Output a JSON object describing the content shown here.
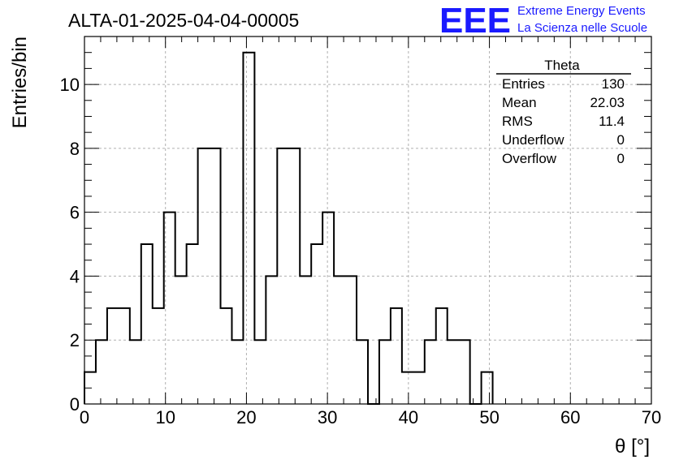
{
  "header": {
    "title": "ALTA-01-2025-04-04-00005",
    "logo_text": "EEE",
    "logo_line1": "Extreme Energy Events",
    "logo_line2": "La Scienza nelle Scuole",
    "logo_color": "#1a1aff"
  },
  "stats": {
    "name": "Theta",
    "rows": [
      {
        "label": "Entries",
        "value": "130"
      },
      {
        "label": "Mean",
        "value": "22.03"
      },
      {
        "label": "RMS",
        "value": "11.4"
      },
      {
        "label": "Underflow",
        "value": "0"
      },
      {
        "label": "Overflow",
        "value": "0"
      }
    ]
  },
  "chart_data": {
    "type": "histogram",
    "title": "ALTA-01-2025-04-04-00005",
    "xlabel": "θ [°]",
    "ylabel": "Entries/bin",
    "xlim": [
      0,
      70
    ],
    "ylim": [
      0,
      11.5
    ],
    "bin_width": 1.4,
    "bin_edges_start": 0,
    "values": [
      1,
      2,
      3,
      3,
      2,
      5,
      3,
      6,
      4,
      5,
      8,
      8,
      3,
      2,
      11,
      2,
      4,
      8,
      8,
      4,
      5,
      6,
      4,
      4,
      2,
      0,
      2,
      3,
      1,
      1,
      2,
      3,
      2,
      2,
      0,
      1
    ],
    "x_ticks": [
      "0",
      "10",
      "20",
      "30",
      "40",
      "50",
      "60",
      "70"
    ],
    "x_tick_values": [
      0,
      10,
      20,
      30,
      40,
      50,
      60,
      70
    ],
    "y_ticks": [
      "0",
      "2",
      "4",
      "6",
      "8",
      "10"
    ],
    "y_tick_values": [
      0,
      2,
      4,
      6,
      8,
      10
    ],
    "grid": true,
    "line_color": "#000000",
    "grid_color": "#b0b0b0"
  }
}
